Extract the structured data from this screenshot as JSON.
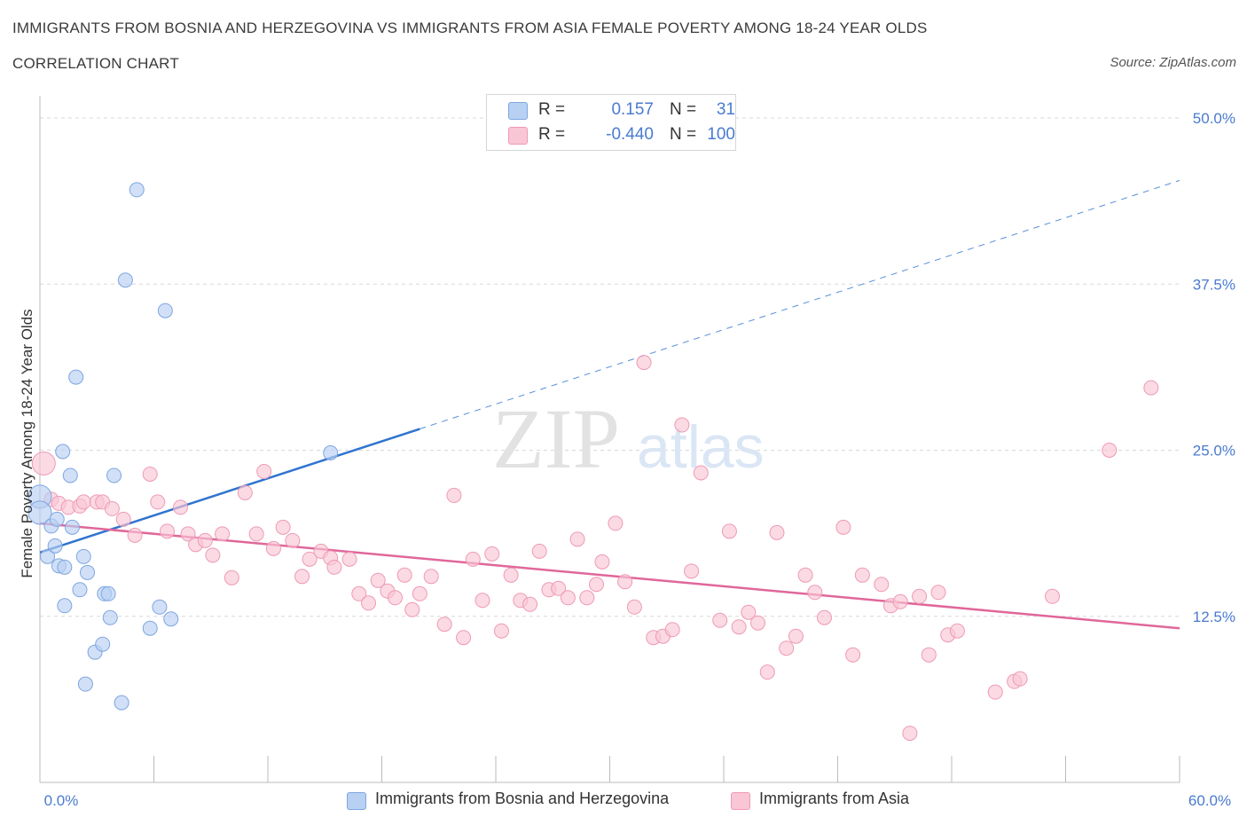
{
  "title": "IMMIGRANTS FROM BOSNIA AND HERZEGOVINA VS IMMIGRANTS FROM ASIA FEMALE POVERTY AMONG 18-24 YEAR OLDS",
  "subtitle": "CORRELATION CHART",
  "source": "Source: ZipAtlas.com",
  "watermark": {
    "zip": "ZIP",
    "atlas": "atlas"
  },
  "legend": {
    "r_label": "R =",
    "n_label": "N =",
    "rows": [
      {
        "r": "0.157",
        "n": "31",
        "swatch_fill": "#b8d0f2",
        "swatch_stroke": "#7da6e0"
      },
      {
        "r": "-0.440",
        "n": "100",
        "swatch_fill": "#f9c6d5",
        "swatch_stroke": "#ee9ab4"
      }
    ]
  },
  "bottom_legend": [
    {
      "label": "Immigrants from Bosnia and Herzegovina"
    },
    {
      "label": "Immigrants from Asia"
    }
  ],
  "colors": {
    "blue_fill": "#b8d0f2",
    "blue_stroke": "#7da6e0",
    "blue_line": "#2f74cf",
    "pink_fill": "#f9c6d5",
    "pink_stroke": "#ee9ab4",
    "pink_line": "#e0679a",
    "tick_label": "#4a7bd0",
    "grid": "#d8d8d8"
  },
  "chart_data": {
    "type": "scatter",
    "title": "IMMIGRANTS FROM BOSNIA AND HERZEGOVINA VS IMMIGRANTS FROM ASIA FEMALE POVERTY AMONG 18-24 YEAR OLDS",
    "xlabel": "",
    "ylabel": "Female Poverty Among 18-24 Year Olds",
    "xlim": [
      0,
      60
    ],
    "ylim": [
      0,
      50.0
    ],
    "x_tick_labels": {
      "min": "0.0%",
      "max": "60.0%"
    },
    "y_ticks": [
      12.5,
      25.0,
      37.5,
      50.0
    ],
    "y_tick_labels": [
      "12.5%",
      "25.0%",
      "37.5%",
      "50.0%"
    ],
    "grid": true,
    "legend_position": "top-center",
    "series": [
      {
        "name": "Immigrants from Bosnia and Herzegovina",
        "points": [
          [
            0.0,
            21.5
          ],
          [
            0.0,
            20.3
          ],
          [
            0.4,
            17.0
          ],
          [
            0.6,
            19.3
          ],
          [
            0.8,
            17.8
          ],
          [
            0.9,
            19.8
          ],
          [
            1.0,
            16.3
          ],
          [
            1.3,
            16.2
          ],
          [
            1.3,
            13.3
          ],
          [
            1.2,
            24.9
          ],
          [
            1.6,
            23.1
          ],
          [
            1.7,
            19.2
          ],
          [
            1.9,
            30.5
          ],
          [
            2.1,
            14.5
          ],
          [
            2.3,
            17.0
          ],
          [
            2.4,
            7.4
          ],
          [
            2.5,
            15.8
          ],
          [
            2.9,
            9.8
          ],
          [
            3.3,
            10.4
          ],
          [
            3.4,
            14.2
          ],
          [
            3.6,
            14.2
          ],
          [
            3.7,
            12.4
          ],
          [
            3.9,
            23.1
          ],
          [
            4.3,
            6.0
          ],
          [
            4.5,
            37.8
          ],
          [
            5.1,
            44.6
          ],
          [
            5.8,
            11.6
          ],
          [
            6.3,
            13.2
          ],
          [
            6.6,
            35.5
          ],
          [
            6.9,
            12.3
          ],
          [
            15.3,
            24.8
          ]
        ],
        "trend": {
          "x0": 0.0,
          "y0": 17.3,
          "x1": 20.0,
          "y1": 26.6,
          "extend_dashed_to_x": 60.0,
          "y_at_60": 45.3
        }
      },
      {
        "name": "Immigrants from Asia",
        "points": [
          [
            0.2,
            24.0
          ],
          [
            0.6,
            21.3
          ],
          [
            1.0,
            21.0
          ],
          [
            1.5,
            20.7
          ],
          [
            2.1,
            20.8
          ],
          [
            2.3,
            21.1
          ],
          [
            3.0,
            21.1
          ],
          [
            3.3,
            21.1
          ],
          [
            3.8,
            20.6
          ],
          [
            4.4,
            19.8
          ],
          [
            5.0,
            18.6
          ],
          [
            5.8,
            23.2
          ],
          [
            6.2,
            21.1
          ],
          [
            6.7,
            18.9
          ],
          [
            7.4,
            20.7
          ],
          [
            7.8,
            18.7
          ],
          [
            8.2,
            17.9
          ],
          [
            8.7,
            18.2
          ],
          [
            9.1,
            17.1
          ],
          [
            9.6,
            18.7
          ],
          [
            10.1,
            15.4
          ],
          [
            10.8,
            21.8
          ],
          [
            11.4,
            18.7
          ],
          [
            11.8,
            23.4
          ],
          [
            12.3,
            17.6
          ],
          [
            12.8,
            19.2
          ],
          [
            13.3,
            18.2
          ],
          [
            13.8,
            15.5
          ],
          [
            14.2,
            16.8
          ],
          [
            14.8,
            17.4
          ],
          [
            15.3,
            16.9
          ],
          [
            15.5,
            16.2
          ],
          [
            16.3,
            16.8
          ],
          [
            16.8,
            14.2
          ],
          [
            17.3,
            13.5
          ],
          [
            17.8,
            15.2
          ],
          [
            18.3,
            14.4
          ],
          [
            18.7,
            13.9
          ],
          [
            19.2,
            15.6
          ],
          [
            19.6,
            13.0
          ],
          [
            20.0,
            14.2
          ],
          [
            20.6,
            15.5
          ],
          [
            21.3,
            11.9
          ],
          [
            21.8,
            21.6
          ],
          [
            22.3,
            10.9
          ],
          [
            22.8,
            16.8
          ],
          [
            23.3,
            13.7
          ],
          [
            23.8,
            17.2
          ],
          [
            24.3,
            11.4
          ],
          [
            24.8,
            15.6
          ],
          [
            25.3,
            13.7
          ],
          [
            25.8,
            13.4
          ],
          [
            26.3,
            17.4
          ],
          [
            26.8,
            14.5
          ],
          [
            27.3,
            14.6
          ],
          [
            27.8,
            13.9
          ],
          [
            28.3,
            18.3
          ],
          [
            28.8,
            13.9
          ],
          [
            29.3,
            14.9
          ],
          [
            29.6,
            16.6
          ],
          [
            30.3,
            19.5
          ],
          [
            30.8,
            15.1
          ],
          [
            31.3,
            13.2
          ],
          [
            31.8,
            31.6
          ],
          [
            32.3,
            10.9
          ],
          [
            32.8,
            11.0
          ],
          [
            33.3,
            11.5
          ],
          [
            33.8,
            26.9
          ],
          [
            34.3,
            15.9
          ],
          [
            34.8,
            23.3
          ],
          [
            35.8,
            12.2
          ],
          [
            36.3,
            18.9
          ],
          [
            36.8,
            11.7
          ],
          [
            37.3,
            12.8
          ],
          [
            37.8,
            12.0
          ],
          [
            38.3,
            8.3
          ],
          [
            38.8,
            18.8
          ],
          [
            39.3,
            10.1
          ],
          [
            39.8,
            11.0
          ],
          [
            40.3,
            15.6
          ],
          [
            40.8,
            14.3
          ],
          [
            41.3,
            12.4
          ],
          [
            42.3,
            19.2
          ],
          [
            42.8,
            9.6
          ],
          [
            43.3,
            15.6
          ],
          [
            44.3,
            14.9
          ],
          [
            44.8,
            13.3
          ],
          [
            45.3,
            13.6
          ],
          [
            45.8,
            3.7
          ],
          [
            46.3,
            14.0
          ],
          [
            46.8,
            9.6
          ],
          [
            47.3,
            14.3
          ],
          [
            47.8,
            11.1
          ],
          [
            48.3,
            11.4
          ],
          [
            50.3,
            6.8
          ],
          [
            51.3,
            7.6
          ],
          [
            51.6,
            7.8
          ],
          [
            53.3,
            14.0
          ],
          [
            56.3,
            25.0
          ],
          [
            58.5,
            29.7
          ]
        ],
        "trend": {
          "x0": 0.0,
          "y0": 19.5,
          "x1": 60.0,
          "y1": 11.6
        }
      }
    ]
  }
}
